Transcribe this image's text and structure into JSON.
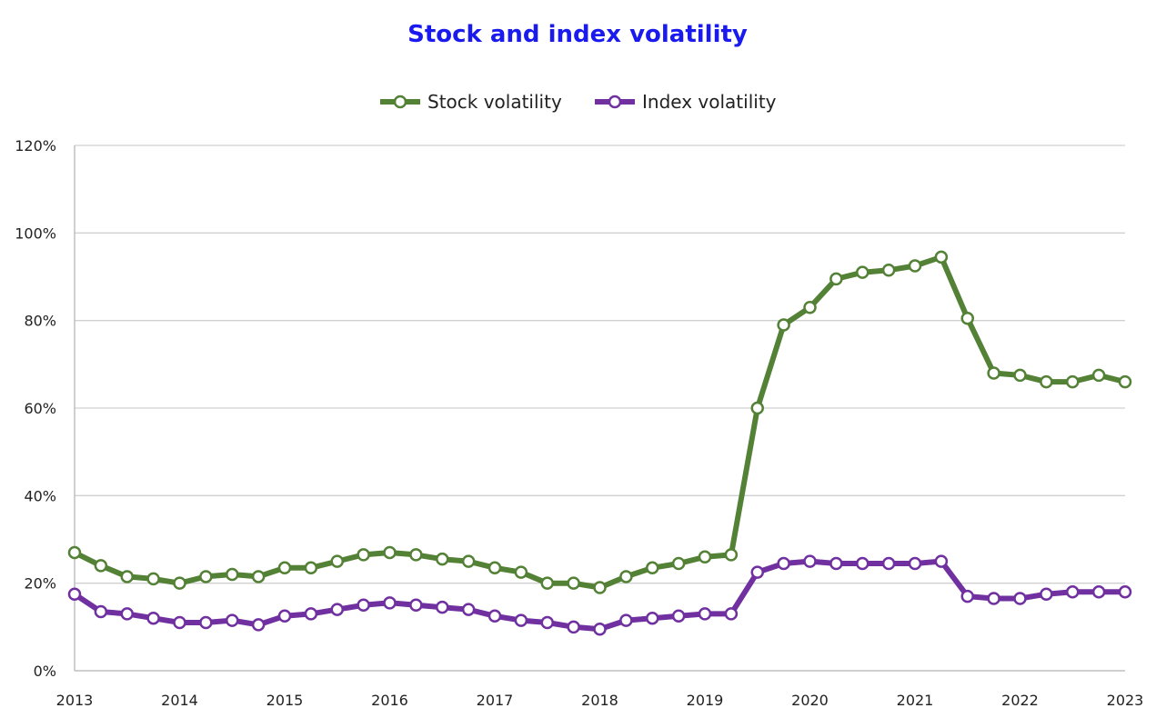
{
  "chart_data": {
    "type": "line",
    "title": "Stock and index volatility",
    "title_color": "#1a1aee",
    "ylim": [
      0,
      1.2
    ],
    "y_ticks": [
      0,
      0.2,
      0.4,
      0.6,
      0.8,
      1.0,
      1.2
    ],
    "y_tick_labels": [
      "0%",
      "20%",
      "40%",
      "60%",
      "80%",
      "100%",
      "120%"
    ],
    "xlim": [
      2013,
      2023
    ],
    "x_ticks": [
      2013,
      2014,
      2015,
      2016,
      2017,
      2018,
      2019,
      2020,
      2021,
      2022,
      2023
    ],
    "x_tick_labels": [
      "2013",
      "2014",
      "2015",
      "2016",
      "2017",
      "2018",
      "2019",
      "2020",
      "2021",
      "2022",
      "2023"
    ],
    "grid": "horizontal",
    "legend_position": "top-center",
    "x": [
      2013.0,
      2013.25,
      2013.5,
      2013.75,
      2014.0,
      2014.25,
      2014.5,
      2014.75,
      2015.0,
      2015.25,
      2015.5,
      2015.75,
      2016.0,
      2016.25,
      2016.5,
      2016.75,
      2017.0,
      2017.25,
      2017.5,
      2017.75,
      2018.0,
      2018.25,
      2018.5,
      2018.75,
      2019.0,
      2019.25,
      2019.5,
      2019.75,
      2020.0,
      2020.25,
      2020.5,
      2020.75,
      2021.0,
      2021.25,
      2021.5,
      2021.75,
      2022.0,
      2022.25,
      2022.5,
      2022.75,
      2023.0
    ],
    "series": [
      {
        "name": "Stock volatility",
        "color": "#538135",
        "values": [
          0.27,
          0.24,
          0.215,
          0.21,
          0.2,
          0.215,
          0.22,
          0.215,
          0.235,
          0.235,
          0.25,
          0.265,
          0.27,
          0.265,
          0.255,
          0.25,
          0.235,
          0.225,
          0.2,
          0.2,
          0.19,
          0.215,
          0.235,
          0.245,
          0.26,
          0.265,
          0.6,
          0.79,
          0.83,
          0.895,
          0.91,
          0.915,
          0.925,
          0.945,
          0.805,
          0.68,
          0.675,
          0.66,
          0.66,
          0.675,
          0.66
        ]
      },
      {
        "name": "Index volatility",
        "color": "#7030a0",
        "values": [
          0.175,
          0.135,
          0.13,
          0.12,
          0.11,
          0.11,
          0.115,
          0.105,
          0.125,
          0.13,
          0.14,
          0.15,
          0.155,
          0.15,
          0.145,
          0.14,
          0.125,
          0.115,
          0.11,
          0.1,
          0.095,
          0.115,
          0.12,
          0.125,
          0.13,
          0.13,
          0.225,
          0.245,
          0.25,
          0.245,
          0.245,
          0.245,
          0.245,
          0.25,
          0.17,
          0.165,
          0.165,
          0.175,
          0.18,
          0.18,
          0.18
        ]
      }
    ]
  }
}
